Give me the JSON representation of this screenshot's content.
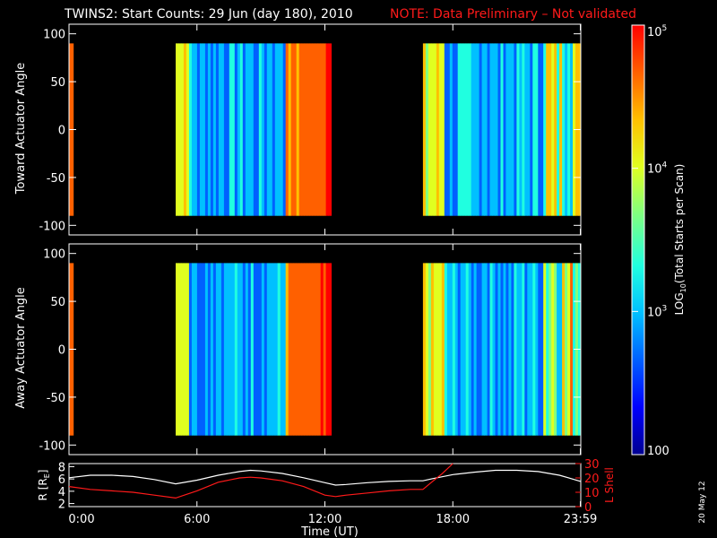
{
  "title": {
    "main": "TWINS2: Start Counts: 29 Jun (day 180), 2010",
    "note": "NOTE: Data Preliminary – Not validated"
  },
  "date_stamp": "20 May 12",
  "chart_data": [
    {
      "type": "heatmap",
      "ylabel": "Toward Actuator Angle",
      "ylim": [
        -110,
        110
      ],
      "yticks": [
        -100,
        -50,
        0,
        50,
        100
      ],
      "data_ylim": [
        -90,
        90
      ],
      "x_range_hours": [
        0,
        24
      ],
      "data_segments_hours": [
        [
          0.0,
          0.2
        ],
        [
          5.0,
          12.3
        ],
        [
          16.6,
          24.0
        ]
      ],
      "grid": false
    },
    {
      "type": "heatmap",
      "ylabel": "Away Actuator Angle",
      "ylim": [
        -110,
        110
      ],
      "yticks": [
        -100,
        -50,
        0,
        50,
        100
      ],
      "data_ylim": [
        -90,
        90
      ],
      "x_range_hours": [
        0,
        24
      ],
      "data_segments_hours": [
        [
          0.0,
          0.2
        ],
        [
          5.0,
          12.3
        ],
        [
          16.6,
          24.0
        ]
      ],
      "grid": false
    },
    {
      "type": "line",
      "ylabel": "R [R",
      "ylabel_sub": "E",
      "ylabel_close": "]",
      "ylim": [
        1.5,
        8.5
      ],
      "yticks": [
        2,
        4,
        6,
        8
      ],
      "y2label": "L Shell",
      "y2lim": [
        0,
        30
      ],
      "y2ticks": [
        0,
        10,
        20,
        30
      ],
      "xlabel": "Time (UT)",
      "xticks": [
        {
          "hour": 0,
          "label": "0:00"
        },
        {
          "hour": 6,
          "label": "6:00"
        },
        {
          "hour": 12,
          "label": "12:00"
        },
        {
          "hour": 18,
          "label": "18:00"
        },
        {
          "hour": 23.98,
          "label": "23:59"
        }
      ],
      "series": [
        {
          "axis": "left",
          "color": "#ffffff",
          "x": [
            0,
            1,
            2,
            3,
            4,
            5,
            6,
            7,
            8,
            8.5,
            9,
            10,
            11,
            12,
            12.5,
            13,
            14,
            15,
            16,
            16.6,
            17,
            18,
            19,
            20,
            21,
            22,
            23,
            24
          ],
          "y": [
            6.2,
            6.6,
            6.6,
            6.4,
            5.9,
            5.2,
            5.8,
            6.6,
            7.2,
            7.4,
            7.3,
            6.9,
            6.2,
            5.4,
            5.0,
            5.1,
            5.4,
            5.6,
            5.7,
            5.7,
            6.0,
            6.7,
            7.1,
            7.4,
            7.4,
            7.2,
            6.6,
            5.6
          ]
        },
        {
          "axis": "right",
          "color": "#ff1a1a",
          "x": [
            0,
            1,
            2,
            3,
            4,
            5,
            6,
            7,
            8,
            8.5,
            9,
            10,
            11,
            12,
            12.5,
            13,
            14,
            15,
            16,
            16.6,
            17,
            17.5,
            18
          ],
          "y": [
            14,
            12,
            11,
            10,
            8,
            6,
            11,
            17,
            20,
            20.5,
            20,
            18,
            14,
            8,
            7,
            8,
            9.5,
            11,
            12,
            12,
            17,
            23,
            30
          ]
        }
      ]
    }
  ],
  "colorbar": {
    "label_pre": "LOG",
    "label_sub": "10",
    "label_post": "(Total Starts per Scan)",
    "scale": "log",
    "range": [
      100,
      100000
    ],
    "ticks": [
      {
        "value": 100,
        "base": "100",
        "exp": ""
      },
      {
        "value": 1000,
        "base": "10",
        "exp": "3"
      },
      {
        "value": 10000,
        "base": "10",
        "exp": "4"
      },
      {
        "value": 100000,
        "base": "10",
        "exp": "5"
      }
    ],
    "colors": [
      "#000090",
      "#0000ff",
      "#0060ff",
      "#00c0ff",
      "#20ffe0",
      "#80ff80",
      "#e0ff20",
      "#ffc000",
      "#ff6000",
      "#ff0000"
    ]
  }
}
